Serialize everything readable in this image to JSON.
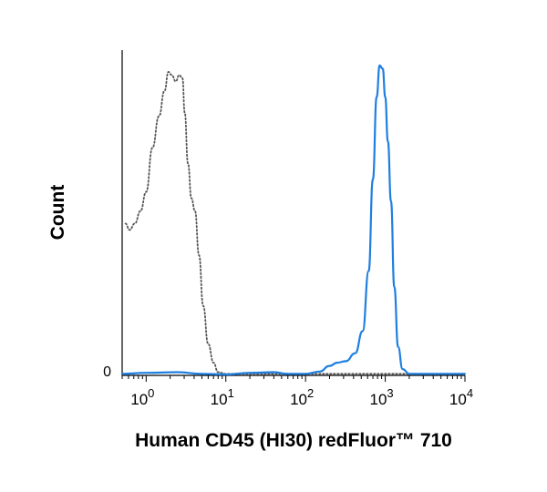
{
  "chart_data": {
    "type": "line",
    "xlabel": "Human CD45 (HI30) redFluor™ 710",
    "ylabel": "Count",
    "x_scale": "log",
    "xlim": [
      0.5,
      10000
    ],
    "ylim": [
      0,
      100
    ],
    "x_ticks": [
      {
        "base": "10",
        "exp": "0",
        "value": 1
      },
      {
        "base": "10",
        "exp": "1",
        "value": 10
      },
      {
        "base": "10",
        "exp": "2",
        "value": 100
      },
      {
        "base": "10",
        "exp": "3",
        "value": 1000
      },
      {
        "base": "10",
        "exp": "4",
        "value": 10000
      }
    ],
    "y_ticks": [
      {
        "label": "0",
        "value": 0
      }
    ],
    "grid": false,
    "series": [
      {
        "style": "dotted",
        "color": "#555555",
        "points": [
          [
            0.55,
            48
          ],
          [
            0.62,
            46
          ],
          [
            0.72,
            48
          ],
          [
            0.85,
            52
          ],
          [
            1.0,
            58
          ],
          [
            1.2,
            72
          ],
          [
            1.45,
            82
          ],
          [
            1.7,
            90
          ],
          [
            1.9,
            96
          ],
          [
            2.1,
            95
          ],
          [
            2.35,
            93
          ],
          [
            2.6,
            95
          ],
          [
            2.85,
            94
          ],
          [
            3.05,
            83
          ],
          [
            3.35,
            67
          ],
          [
            3.7,
            56
          ],
          [
            4.1,
            52
          ],
          [
            4.6,
            38
          ],
          [
            5.2,
            22
          ],
          [
            6.0,
            10
          ],
          [
            7.0,
            4
          ],
          [
            8.0,
            1
          ],
          [
            10,
            0.5
          ],
          [
            40,
            0.5
          ],
          [
            250,
            0.5
          ],
          [
            1000,
            0.5
          ],
          [
            3000,
            0.5
          ],
          [
            10000,
            0.5
          ]
        ]
      },
      {
        "style": "solid",
        "color": "#1f7fe0",
        "points": [
          [
            0.5,
            0.5
          ],
          [
            1.0,
            0.8
          ],
          [
            2.5,
            1.0
          ],
          [
            5.0,
            0.5
          ],
          [
            10,
            0.3
          ],
          [
            20,
            0.8
          ],
          [
            40,
            1.0
          ],
          [
            60,
            0.5
          ],
          [
            100,
            0.5
          ],
          [
            150,
            1.2
          ],
          [
            200,
            3.0
          ],
          [
            250,
            4.0
          ],
          [
            320,
            4.5
          ],
          [
            420,
            7
          ],
          [
            520,
            14
          ],
          [
            620,
            33
          ],
          [
            700,
            62
          ],
          [
            780,
            88
          ],
          [
            850,
            98
          ],
          [
            930,
            97
          ],
          [
            1000,
            88
          ],
          [
            1080,
            74
          ],
          [
            1180,
            55
          ],
          [
            1300,
            28
          ],
          [
            1450,
            9
          ],
          [
            1650,
            2
          ],
          [
            2000,
            0.5
          ],
          [
            5000,
            0.5
          ],
          [
            10000,
            0.5
          ]
        ]
      }
    ]
  }
}
